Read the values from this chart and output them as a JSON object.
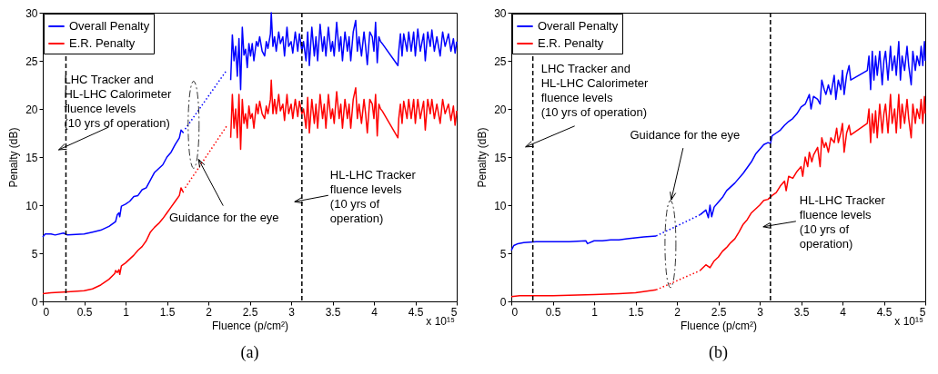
{
  "chart_data": [
    {
      "type": "line",
      "title": "(a)",
      "xlabel": "Fluence (p/cm²)",
      "ylabel": "Penalty (dB)",
      "xlim": [
        0,
        5
      ],
      "xticks": [
        0,
        0.5,
        1,
        1.5,
        2,
        2.5,
        3,
        3.5,
        4,
        4.5,
        5
      ],
      "ylim": [
        0,
        30
      ],
      "yticks": [
        0,
        5,
        10,
        15,
        20,
        25,
        30
      ],
      "legend": "top left",
      "series": [
        {
          "name": "Overall Penalty",
          "color": "#0000ff",
          "line_style": "solid",
          "x": [
            0,
            0.03,
            0.1,
            0.15,
            0.25,
            0.3,
            0.5,
            0.6,
            0.7,
            0.8,
            0.88,
            0.9,
            0.92,
            0.93,
            0.95,
            1.0,
            1.05,
            1.1,
            1.15,
            1.2,
            1.25,
            1.3,
            1.35,
            1.4,
            1.45,
            1.5,
            1.55,
            1.6,
            1.65,
            1.67,
            1.7
          ],
          "values": [
            6.7,
            7.0,
            7.0,
            6.9,
            7.1,
            6.9,
            7.0,
            7.2,
            7.4,
            7.8,
            8.3,
            9.0,
            9.2,
            8.8,
            9.9,
            10.1,
            10.4,
            10.9,
            11.0,
            11.6,
            11.8,
            12.6,
            13.4,
            13.8,
            14.2,
            15.0,
            15.5,
            16.3,
            17.0,
            17.8,
            17.5
          ]
        },
        {
          "name": "E.R. Penalty",
          "color": "#ff0000",
          "line_style": "solid",
          "x": [
            0,
            0.1,
            0.3,
            0.5,
            0.6,
            0.7,
            0.8,
            0.87,
            0.88,
            0.9,
            0.92,
            0.93,
            0.95,
            1.0,
            1.05,
            1.1,
            1.15,
            1.2,
            1.25,
            1.3,
            1.35,
            1.4,
            1.45,
            1.5,
            1.55,
            1.6,
            1.65,
            1.67,
            1.7
          ],
          "values": [
            0.8,
            0.9,
            1.0,
            1.1,
            1.3,
            1.7,
            2.3,
            2.9,
            3.2,
            3.0,
            3.3,
            2.8,
            3.7,
            4.0,
            4.4,
            4.8,
            5.3,
            5.7,
            6.3,
            7.2,
            7.7,
            8.1,
            8.6,
            9.2,
            9.8,
            10.4,
            11.0,
            11.8,
            11.3
          ]
        },
        {
          "color": "#0000ff",
          "line_style": "solid",
          "x": [
            2.27,
            2.29,
            2.31,
            2.33,
            2.35,
            2.37,
            2.39,
            2.41,
            2.43,
            2.45,
            2.47,
            2.49,
            2.51,
            2.53,
            2.55,
            2.58,
            2.6,
            2.62,
            2.65,
            2.68,
            2.7,
            2.72,
            2.75,
            2.76,
            2.78,
            2.8,
            2.82,
            2.85,
            2.87,
            2.9,
            2.92,
            2.95,
            2.97,
            3.0,
            3.02,
            3.05,
            3.08,
            3.1,
            3.13,
            3.15,
            3.18,
            3.2,
            3.22,
            3.25,
            3.28,
            3.3,
            3.32,
            3.35,
            3.38,
            3.4,
            3.42,
            3.45,
            3.48,
            3.5,
            3.52,
            3.55,
            3.58,
            3.6,
            3.62,
            3.65,
            3.68,
            3.7,
            3.72,
            3.75,
            3.78,
            3.8,
            3.82,
            3.85,
            3.88,
            3.9,
            3.92,
            3.95,
            3.98,
            4.0,
            4.02,
            4.04,
            4.06,
            4.08,
            4.1,
            4.29,
            4.3,
            4.32,
            4.34,
            4.36,
            4.4,
            4.42,
            4.45,
            4.48,
            4.5,
            4.53,
            4.56,
            4.6,
            4.62,
            4.65,
            4.68,
            4.7,
            4.73,
            4.76,
            4.8,
            4.83,
            4.86,
            4.9,
            4.93,
            4.96,
            4.98,
            5.0
          ],
          "values": [
            23.0,
            27.7,
            25.0,
            26.5,
            23.4,
            27.3,
            22.0,
            28.5,
            25.6,
            26.2,
            24.3,
            26.8,
            25.5,
            26.8,
            25.0,
            27.0,
            26.5,
            27.5,
            26.0,
            25.5,
            27.0,
            26.3,
            27.8,
            30.0,
            26.5,
            27.5,
            26.0,
            28.0,
            26.8,
            27.5,
            25.5,
            28.5,
            26.5,
            27.0,
            25.8,
            28.0,
            26.0,
            27.8,
            26.0,
            27.0,
            25.0,
            28.0,
            24.5,
            28.5,
            25.5,
            27.5,
            25.0,
            28.8,
            26.0,
            27.5,
            25.5,
            28.5,
            26.0,
            27.0,
            25.5,
            29.0,
            26.0,
            27.5,
            25.0,
            28.0,
            26.0,
            27.5,
            25.0,
            28.0,
            29.2,
            26.0,
            27.5,
            25.5,
            28.0,
            26.5,
            24.6,
            28.0,
            27.5,
            26.0,
            29.0,
            24.8,
            27.5,
            27.0,
            26.8,
            24.5,
            26.0,
            27.8,
            25.5,
            27.8,
            26.0,
            28.0,
            26.0,
            28.0,
            25.5,
            28.3,
            26.0,
            27.8,
            25.0,
            28.0,
            26.5,
            28.2,
            26.0,
            27.5,
            25.5,
            28.0,
            26.5,
            27.8,
            26.0,
            27.3,
            25.8,
            27.0
          ]
        },
        {
          "color": "#ff0000",
          "line_style": "solid",
          "x": [
            2.27,
            2.29,
            2.31,
            2.33,
            2.35,
            2.37,
            2.39,
            2.41,
            2.43,
            2.45,
            2.47,
            2.49,
            2.51,
            2.53,
            2.55,
            2.58,
            2.6,
            2.62,
            2.65,
            2.68,
            2.7,
            2.72,
            2.75,
            2.76,
            2.78,
            2.8,
            2.82,
            2.85,
            2.87,
            2.9,
            2.92,
            2.95,
            2.97,
            3.0,
            3.02,
            3.05,
            3.08,
            3.1,
            3.13,
            3.15,
            3.18,
            3.2,
            3.22,
            3.25,
            3.28,
            3.3,
            3.32,
            3.35,
            3.38,
            3.4,
            3.42,
            3.45,
            3.48,
            3.5,
            3.52,
            3.55,
            3.58,
            3.6,
            3.62,
            3.65,
            3.68,
            3.7,
            3.72,
            3.75,
            3.78,
            3.8,
            3.82,
            3.85,
            3.88,
            3.9,
            3.92,
            3.95,
            3.98,
            4.0,
            4.02,
            4.04,
            4.06,
            4.08,
            4.1,
            4.29,
            4.3,
            4.32,
            4.34,
            4.36,
            4.4,
            4.42,
            4.45,
            4.48,
            4.5,
            4.53,
            4.56,
            4.6,
            4.62,
            4.65,
            4.68,
            4.7,
            4.73,
            4.76,
            4.8,
            4.83,
            4.86,
            4.9,
            4.93,
            4.96,
            4.98,
            5.0
          ],
          "values": [
            17.0,
            21.5,
            18.0,
            20.0,
            17.0,
            21.5,
            15.8,
            21.0,
            18.5,
            19.5,
            18.0,
            20.3,
            19.0,
            19.5,
            18.0,
            20.5,
            19.5,
            20.8,
            19.5,
            19.0,
            20.3,
            19.5,
            21.0,
            23.0,
            19.5,
            21.0,
            19.5,
            21.5,
            19.8,
            20.5,
            18.8,
            21.5,
            19.5,
            20.5,
            19.0,
            21.0,
            19.2,
            20.8,
            19.5,
            20.0,
            18.0,
            21.2,
            17.5,
            21.0,
            18.5,
            20.5,
            18.0,
            21.5,
            19.0,
            20.5,
            18.0,
            21.5,
            19.0,
            20.0,
            18.5,
            21.8,
            19.0,
            20.5,
            18.0,
            21.0,
            19.0,
            20.5,
            18.0,
            21.0,
            22.2,
            19.0,
            20.5,
            18.5,
            21.0,
            19.5,
            17.5,
            21.0,
            20.5,
            19.0,
            21.5,
            17.2,
            20.5,
            20.0,
            19.8,
            17.0,
            19.0,
            20.5,
            18.5,
            20.8,
            19.0,
            21.0,
            19.0,
            21.0,
            18.5,
            21.0,
            19.0,
            20.8,
            17.8,
            21.0,
            19.5,
            21.0,
            19.0,
            20.5,
            18.5,
            21.0,
            19.5,
            20.5,
            18.8,
            20.3,
            18.3,
            19.8
          ]
        },
        {
          "color": "#0000ff",
          "line_style": "dotted",
          "x": [
            1.72,
            2.22
          ],
          "values": [
            17.9,
            24.0
          ]
        },
        {
          "color": "#ff0000",
          "line_style": "dotted",
          "x": [
            1.72,
            2.22
          ],
          "values": [
            11.8,
            18.2
          ]
        }
      ],
      "ref_lines": [
        {
          "axis": "x",
          "value": 0.28,
          "color": "#000000",
          "line_style": "dashed"
        },
        {
          "axis": "x",
          "value": 3.13,
          "color": "#000000",
          "line_style": "dashed"
        }
      ],
      "annotations": [
        "LHC Tracker and\nHL-LHC Calorimeter\nfluence levels\n(10 yrs of operation)",
        "Guidance for the eye",
        "HL-LHC Tracker\nfluence levels\n(10 yrs of\noperation)",
        "x 10¹⁵"
      ]
    },
    {
      "type": "line",
      "title": "(b)",
      "xlabel": "Fluence (p/cm²)",
      "ylabel": "Penalty (dB)",
      "xlim": [
        0,
        5
      ],
      "xticks": [
        0,
        0.5,
        1,
        1.5,
        2,
        2.5,
        3,
        3.5,
        4,
        4.5,
        5
      ],
      "ylim": [
        0,
        30
      ],
      "yticks": [
        0,
        5,
        10,
        15,
        20,
        25,
        30
      ],
      "legend": "top left",
      "series": [
        {
          "name": "Overall Penalty",
          "color": "#0000ff",
          "line_style": "solid",
          "x": [
            0,
            0.03,
            0.08,
            0.15,
            0.3,
            0.5,
            0.7,
            0.9,
            0.92,
            1.0,
            1.1,
            1.2,
            1.3,
            1.4,
            1.5,
            1.6,
            1.75
          ],
          "values": [
            5.3,
            5.8,
            6.0,
            6.1,
            6.2,
            6.2,
            6.2,
            6.3,
            6.0,
            6.3,
            6.3,
            6.4,
            6.4,
            6.5,
            6.6,
            6.7,
            6.8
          ]
        },
        {
          "name": "E.R. Penalty",
          "color": "#ff0000",
          "line_style": "solid",
          "x": [
            0,
            0.1,
            0.5,
            1.0,
            1.3,
            1.5,
            1.75
          ],
          "values": [
            0.5,
            0.6,
            0.6,
            0.7,
            0.8,
            0.9,
            1.2
          ]
        },
        {
          "color": "#0000ff",
          "line_style": "solid",
          "x": [
            2.28,
            2.35,
            2.38,
            2.4,
            2.42,
            2.45,
            2.5,
            2.55,
            2.6,
            2.7,
            2.8,
            2.9,
            2.95,
            3.0,
            3.05,
            3.1,
            3.13,
            3.15,
            3.2,
            3.25,
            3.3,
            3.35,
            3.4,
            3.45,
            3.5,
            3.55,
            3.6,
            3.62,
            3.65,
            3.7,
            3.73,
            3.75,
            3.78,
            3.8,
            3.83,
            3.86,
            3.9,
            3.92,
            3.95,
            3.98,
            4.0,
            4.02,
            4.05,
            4.08,
            4.1,
            4.3,
            4.32,
            4.34,
            4.36,
            4.38,
            4.4,
            4.42,
            4.45,
            4.48,
            4.5,
            4.52,
            4.55,
            4.58,
            4.6,
            4.63,
            4.65,
            4.68,
            4.7,
            4.72,
            4.75,
            4.78,
            4.8,
            4.83,
            4.85,
            4.88,
            4.9,
            4.93,
            4.95,
            4.97,
            4.99,
            5.0
          ],
          "values": [
            9.0,
            9.5,
            8.7,
            10.0,
            8.8,
            9.8,
            10.3,
            10.8,
            11.5,
            12.3,
            13.3,
            14.5,
            15.3,
            15.8,
            16.3,
            16.5,
            16.4,
            17.2,
            17.5,
            17.8,
            18.3,
            18.7,
            19.0,
            19.5,
            20.2,
            20.5,
            21.5,
            20.0,
            21.3,
            21.0,
            20.5,
            23.0,
            22.0,
            21.5,
            22.5,
            21.5,
            23.5,
            21.0,
            23.0,
            22.0,
            24.0,
            21.5,
            23.5,
            24.5,
            23.0,
            24.0,
            25.5,
            22.0,
            26.0,
            23.0,
            25.5,
            23.5,
            26.0,
            22.5,
            25.0,
            26.0,
            23.0,
            26.5,
            24.0,
            25.5,
            23.5,
            27.0,
            23.0,
            25.5,
            24.0,
            26.5,
            24.5,
            22.5,
            26.0,
            24.0,
            25.5,
            24.5,
            26.5,
            24.5,
            27.0,
            25.0
          ]
        },
        {
          "color": "#ff0000",
          "line_style": "solid",
          "x": [
            2.28,
            2.35,
            2.4,
            2.45,
            2.5,
            2.55,
            2.6,
            2.65,
            2.7,
            2.75,
            2.8,
            2.85,
            2.9,
            2.95,
            3.0,
            3.05,
            3.1,
            3.15,
            3.2,
            3.25,
            3.3,
            3.32,
            3.35,
            3.4,
            3.45,
            3.5,
            3.52,
            3.55,
            3.58,
            3.6,
            3.63,
            3.65,
            3.7,
            3.73,
            3.75,
            3.78,
            3.8,
            3.83,
            3.86,
            3.9,
            3.93,
            3.95,
            3.98,
            4.0,
            4.02,
            4.05,
            4.08,
            4.1,
            4.3,
            4.32,
            4.34,
            4.36,
            4.38,
            4.4,
            4.42,
            4.45,
            4.48,
            4.5,
            4.52,
            4.55,
            4.58,
            4.6,
            4.63,
            4.65,
            4.68,
            4.7,
            4.72,
            4.75,
            4.78,
            4.8,
            4.83,
            4.85,
            4.88,
            4.9,
            4.93,
            4.95,
            4.97,
            4.99,
            5.0
          ],
          "values": [
            3.2,
            3.8,
            3.5,
            4.2,
            4.6,
            5.2,
            5.6,
            6.1,
            6.5,
            7.2,
            8.0,
            8.5,
            9.2,
            9.6,
            10.0,
            10.5,
            10.6,
            11.0,
            11.3,
            12.0,
            12.5,
            11.5,
            13.0,
            12.8,
            13.5,
            14.0,
            13.0,
            15.0,
            14.0,
            15.5,
            14.5,
            15.2,
            16.0,
            14.0,
            17.0,
            16.0,
            16.5,
            15.5,
            17.0,
            16.5,
            18.0,
            16.5,
            17.5,
            18.5,
            15.5,
            17.5,
            18.3,
            17.3,
            18.5,
            20.0,
            16.5,
            19.5,
            17.5,
            19.8,
            17.0,
            20.5,
            17.5,
            19.5,
            20.5,
            17.5,
            21.5,
            18.5,
            20.0,
            17.5,
            21.5,
            18.0,
            20.5,
            18.5,
            21.0,
            19.0,
            17.0,
            20.5,
            18.5,
            20.0,
            19.0,
            21.0,
            18.5,
            21.3,
            19.5
          ]
        },
        {
          "color": "#0000ff",
          "line_style": "dotted",
          "x": [
            1.75,
            2.28
          ],
          "values": [
            6.8,
            9.0
          ]
        },
        {
          "color": "#ff0000",
          "line_style": "dotted",
          "x": [
            1.75,
            2.28
          ],
          "values": [
            1.2,
            3.2
          ]
        }
      ],
      "ref_lines": [
        {
          "axis": "x",
          "value": 0.26,
          "color": "#000000",
          "line_style": "dashed"
        },
        {
          "axis": "x",
          "value": 3.13,
          "color": "#000000",
          "line_style": "dashed"
        }
      ],
      "annotations": [
        "LHC Tracker and\nHL-LHC Calorimeter\nfluence levels\n(10 yrs of operation)",
        "Guidance for the eye",
        "HL-LHC Tracker\nfluence levels\n(10 yrs of\noperation)",
        "x 10¹⁵"
      ]
    }
  ]
}
